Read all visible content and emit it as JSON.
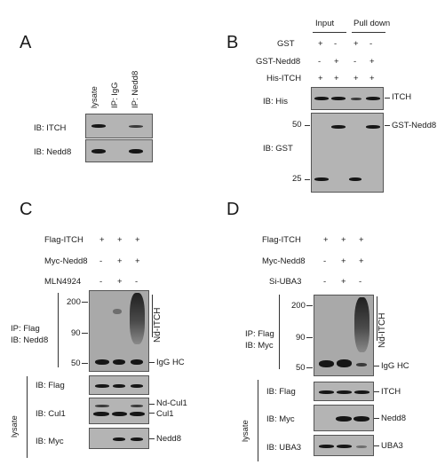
{
  "panels": {
    "a": {
      "letter": "A",
      "lanes": [
        "lysate",
        "IP: IgG",
        "IP: Nedd8"
      ],
      "blots": [
        "IB: ITCH",
        "IB: Nedd8"
      ]
    },
    "b": {
      "letter": "B",
      "groups": [
        "Input",
        "Pull down"
      ],
      "rows": [
        {
          "label": "GST",
          "marks": [
            "+",
            "-",
            "+",
            "-"
          ]
        },
        {
          "label": "GST-Nedd8",
          "marks": [
            "-",
            "+",
            "-",
            "+"
          ]
        },
        {
          "label": "His-ITCH",
          "marks": [
            "+",
            "+",
            "+",
            "+"
          ]
        }
      ],
      "blots": [
        "IB: His",
        "IB: GST"
      ],
      "markers": [
        "50",
        "25"
      ],
      "right_labels": [
        "ITCH",
        "GST-Nedd8"
      ]
    },
    "c": {
      "letter": "C",
      "rows": [
        {
          "label": "Flag-ITCH",
          "marks": [
            "+",
            "+",
            "+"
          ]
        },
        {
          "label": "Myc-Nedd8",
          "marks": [
            "-",
            "+",
            "+"
          ]
        },
        {
          "label": "MLN4924",
          "marks": [
            "-",
            "+",
            "-"
          ]
        }
      ],
      "ip_label": [
        "IP: Flag",
        "IB: Nedd8"
      ],
      "markers": [
        "200",
        "90",
        "50"
      ],
      "smear_label": "Nd-ITCH",
      "igg_label": "IgG HC",
      "lysate_label": "lysate",
      "lysate_blots": [
        "IB: Flag",
        "IB: Cul1",
        "IB: Myc"
      ],
      "right_labels": [
        "Nd-Cul1",
        "Cul1",
        "Nedd8"
      ]
    },
    "d": {
      "letter": "D",
      "rows": [
        {
          "label": "Flag-ITCH",
          "marks": [
            "+",
            "+",
            "+"
          ]
        },
        {
          "label": "Myc-Nedd8",
          "marks": [
            "-",
            "+",
            "+"
          ]
        },
        {
          "label": "Si-UBA3",
          "marks": [
            "-",
            "+",
            "-"
          ]
        }
      ],
      "ip_label": [
        "IP: Flag",
        "IB: Myc"
      ],
      "markers": [
        "200",
        "90",
        "50"
      ],
      "smear_label": "Nd-ITCH",
      "igg_label": "IgG HC",
      "lysate_label": "lysate",
      "lysate_blots": [
        "IB: Flag",
        "IB: Myc",
        "IB: UBA3"
      ],
      "right_labels": [
        "ITCH",
        "Nedd8",
        "UBA3"
      ]
    }
  },
  "colors": {
    "membrane": "#b4b4b4",
    "band": "#161616",
    "text": "#1a1a1a"
  }
}
